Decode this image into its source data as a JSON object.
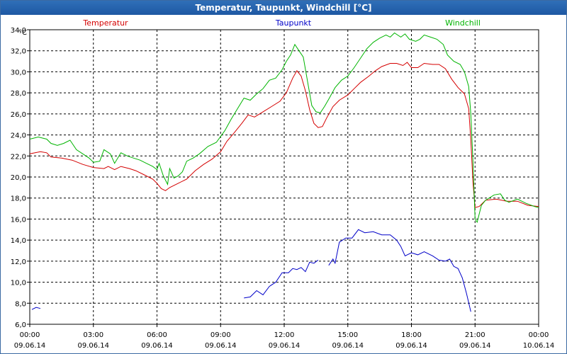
{
  "window": {
    "title": "Temperatur, Taupunkt, Windchill [°C]"
  },
  "chart_data": {
    "type": "line",
    "title": "Temperatur, Taupunkt, Windchill [°C]",
    "ylabel": "°C",
    "ylim": [
      6.0,
      34.0
    ],
    "yticks": [
      "6,0",
      "8,0",
      "10,0",
      "12,0",
      "14,0",
      "16,0",
      "18,0",
      "20,0",
      "22,0",
      "24,0",
      "26,0",
      "28,0",
      "30,0",
      "32,0",
      "34,0"
    ],
    "xticks": [
      {
        "time": "00:00",
        "date": "09.06.14"
      },
      {
        "time": "03:00",
        "date": "09.06.14"
      },
      {
        "time": "06:00",
        "date": "09.06.14"
      },
      {
        "time": "09:00",
        "date": "09.06.14"
      },
      {
        "time": "12:00",
        "date": "09.06.14"
      },
      {
        "time": "15:00",
        "date": "09.06.14"
      },
      {
        "time": "18:00",
        "date": "09.06.14"
      },
      {
        "time": "21:00",
        "date": "09.06.14"
      },
      {
        "time": "00:00",
        "date": "10.06.14"
      }
    ],
    "xlim_hours": [
      0,
      24
    ],
    "grid": true,
    "series": [
      {
        "name": "Temperatur",
        "color": "#d40000",
        "legend_pos": "left",
        "points": [
          [
            0,
            22.2
          ],
          [
            0.5,
            22.4
          ],
          [
            0.8,
            22.3
          ],
          [
            1,
            21.9
          ],
          [
            1.5,
            21.8
          ],
          [
            2,
            21.6
          ],
          [
            2.5,
            21.2
          ],
          [
            3,
            20.9
          ],
          [
            3.5,
            20.8
          ],
          [
            3.7,
            21.0
          ],
          [
            4,
            20.7
          ],
          [
            4.3,
            21.0
          ],
          [
            4.7,
            20.8
          ],
          [
            5,
            20.6
          ],
          [
            5.4,
            20.2
          ],
          [
            5.8,
            19.8
          ],
          [
            6,
            19.4
          ],
          [
            6.2,
            18.9
          ],
          [
            6.4,
            18.7
          ],
          [
            6.6,
            19.0
          ],
          [
            7,
            19.4
          ],
          [
            7.4,
            19.8
          ],
          [
            7.8,
            20.6
          ],
          [
            8.2,
            21.2
          ],
          [
            8.6,
            21.7
          ],
          [
            9,
            22.4
          ],
          [
            9.3,
            23.4
          ],
          [
            9.6,
            24.1
          ],
          [
            10,
            25.1
          ],
          [
            10.3,
            25.9
          ],
          [
            10.6,
            25.7
          ],
          [
            11,
            26.2
          ],
          [
            11.4,
            26.7
          ],
          [
            11.8,
            27.2
          ],
          [
            12.1,
            28.0
          ],
          [
            12.4,
            29.4
          ],
          [
            12.6,
            30.1
          ],
          [
            12.8,
            29.6
          ],
          [
            13,
            28.2
          ],
          [
            13.2,
            26.4
          ],
          [
            13.4,
            25.1
          ],
          [
            13.6,
            24.7
          ],
          [
            13.8,
            24.8
          ],
          [
            14,
            25.6
          ],
          [
            14.3,
            26.7
          ],
          [
            14.6,
            27.3
          ],
          [
            15,
            27.8
          ],
          [
            15.3,
            28.4
          ],
          [
            15.6,
            29.0
          ],
          [
            16,
            29.6
          ],
          [
            16.3,
            30.1
          ],
          [
            16.6,
            30.5
          ],
          [
            17,
            30.8
          ],
          [
            17.3,
            30.8
          ],
          [
            17.6,
            30.6
          ],
          [
            17.8,
            30.9
          ],
          [
            18,
            30.4
          ],
          [
            18.3,
            30.4
          ],
          [
            18.6,
            30.8
          ],
          [
            19,
            30.7
          ],
          [
            19.3,
            30.7
          ],
          [
            19.6,
            30.3
          ],
          [
            19.9,
            29.3
          ],
          [
            20.2,
            28.5
          ],
          [
            20.5,
            27.9
          ],
          [
            20.7,
            26.5
          ],
          [
            20.8,
            23.5
          ],
          [
            20.9,
            19.5
          ],
          [
            21.0,
            17.1
          ],
          [
            21.2,
            17.2
          ],
          [
            21.5,
            17.8
          ],
          [
            22,
            17.9
          ],
          [
            22.5,
            17.7
          ],
          [
            23,
            17.7
          ],
          [
            23.5,
            17.3
          ],
          [
            24,
            17.2
          ]
        ]
      },
      {
        "name": "Taupunkt",
        "color": "#0000c8",
        "legend_pos": "center",
        "segments": [
          [
            [
              0.1,
              7.4
            ],
            [
              0.3,
              7.6
            ],
            [
              0.5,
              7.5
            ]
          ],
          [
            [
              10.1,
              8.5
            ],
            [
              10.4,
              8.6
            ],
            [
              10.7,
              9.2
            ],
            [
              11,
              8.8
            ],
            [
              11.3,
              9.6
            ],
            [
              11.6,
              10.0
            ],
            [
              11.9,
              10.9
            ],
            [
              12.2,
              10.9
            ],
            [
              12.4,
              11.3
            ],
            [
              12.6,
              11.2
            ],
            [
              12.8,
              11.4
            ],
            [
              13,
              11.0
            ],
            [
              13.2,
              11.9
            ],
            [
              13.4,
              11.8
            ],
            [
              13.6,
              12.1
            ]
          ],
          [
            [
              14.1,
              11.6
            ],
            [
              14.3,
              12.2
            ],
            [
              14.4,
              11.8
            ],
            [
              14.6,
              13.8
            ],
            [
              14.9,
              14.2
            ],
            [
              15.2,
              14.2
            ],
            [
              15.5,
              15.0
            ],
            [
              15.8,
              14.7
            ],
            [
              16.2,
              14.8
            ],
            [
              16.6,
              14.5
            ],
            [
              17,
              14.5
            ],
            [
              17.3,
              14.0
            ],
            [
              17.5,
              13.4
            ],
            [
              17.7,
              12.5
            ],
            [
              18,
              12.8
            ],
            [
              18.3,
              12.6
            ],
            [
              18.6,
              12.9
            ],
            [
              19,
              12.5
            ],
            [
              19.3,
              12.1
            ],
            [
              19.6,
              12.0
            ],
            [
              19.8,
              12.2
            ],
            [
              20,
              11.5
            ],
            [
              20.2,
              11.3
            ],
            [
              20.4,
              10.4
            ],
            [
              20.6,
              8.9
            ],
            [
              20.8,
              7.2
            ]
          ]
        ]
      },
      {
        "name": "Windchill",
        "color": "#00b400",
        "legend_pos": "right",
        "points": [
          [
            0,
            23.6
          ],
          [
            0.4,
            23.8
          ],
          [
            0.8,
            23.6
          ],
          [
            1,
            23.2
          ],
          [
            1.3,
            23.0
          ],
          [
            1.6,
            23.2
          ],
          [
            1.9,
            23.5
          ],
          [
            2.2,
            22.6
          ],
          [
            2.5,
            22.2
          ],
          [
            2.8,
            21.8
          ],
          [
            3,
            21.4
          ],
          [
            3.3,
            21.5
          ],
          [
            3.5,
            22.6
          ],
          [
            3.8,
            22.2
          ],
          [
            4,
            21.3
          ],
          [
            4.3,
            22.3
          ],
          [
            4.6,
            22.0
          ],
          [
            4.9,
            21.8
          ],
          [
            5.2,
            21.6
          ],
          [
            5.5,
            21.3
          ],
          [
            5.8,
            21.0
          ],
          [
            6,
            20.7
          ],
          [
            6.1,
            21.3
          ],
          [
            6.3,
            20.1
          ],
          [
            6.5,
            19.3
          ],
          [
            6.6,
            20.8
          ],
          [
            6.8,
            19.9
          ],
          [
            7,
            20.1
          ],
          [
            7.2,
            20.5
          ],
          [
            7.4,
            21.5
          ],
          [
            7.7,
            21.8
          ],
          [
            8,
            22.2
          ],
          [
            8.4,
            22.9
          ],
          [
            8.8,
            23.3
          ],
          [
            9.2,
            24.4
          ],
          [
            9.5,
            25.5
          ],
          [
            9.8,
            26.5
          ],
          [
            10.1,
            27.5
          ],
          [
            10.4,
            27.3
          ],
          [
            10.7,
            27.9
          ],
          [
            11,
            28.4
          ],
          [
            11.3,
            29.2
          ],
          [
            11.6,
            29.4
          ],
          [
            11.9,
            30.2
          ],
          [
            12.1,
            31.0
          ],
          [
            12.3,
            31.6
          ],
          [
            12.5,
            32.6
          ],
          [
            12.7,
            32.0
          ],
          [
            12.9,
            31.4
          ],
          [
            13.1,
            29.1
          ],
          [
            13.3,
            26.8
          ],
          [
            13.5,
            26.2
          ],
          [
            13.7,
            26.1
          ],
          [
            13.9,
            26.7
          ],
          [
            14.1,
            27.4
          ],
          [
            14.4,
            28.5
          ],
          [
            14.7,
            29.2
          ],
          [
            15,
            29.6
          ],
          [
            15.3,
            30.4
          ],
          [
            15.6,
            31.3
          ],
          [
            15.9,
            32.2
          ],
          [
            16.2,
            32.8
          ],
          [
            16.5,
            33.2
          ],
          [
            16.8,
            33.5
          ],
          [
            17,
            33.3
          ],
          [
            17.2,
            33.7
          ],
          [
            17.5,
            33.3
          ],
          [
            17.7,
            33.6
          ],
          [
            17.9,
            33.1
          ],
          [
            18.2,
            32.9
          ],
          [
            18.4,
            33.1
          ],
          [
            18.6,
            33.5
          ],
          [
            18.9,
            33.3
          ],
          [
            19.2,
            33.1
          ],
          [
            19.5,
            32.6
          ],
          [
            19.7,
            31.6
          ],
          [
            20,
            31.0
          ],
          [
            20.3,
            30.7
          ],
          [
            20.5,
            30.0
          ],
          [
            20.7,
            28.6
          ],
          [
            20.8,
            26.0
          ],
          [
            20.9,
            21.5
          ],
          [
            21.0,
            16.0
          ],
          [
            21.1,
            15.7
          ],
          [
            21.3,
            17.3
          ],
          [
            21.5,
            17.8
          ],
          [
            21.9,
            18.3
          ],
          [
            22.2,
            18.4
          ],
          [
            22.4,
            17.8
          ],
          [
            22.6,
            17.6
          ],
          [
            23,
            17.9
          ],
          [
            23.4,
            17.5
          ],
          [
            23.8,
            17.2
          ],
          [
            24,
            17.1
          ]
        ]
      }
    ]
  }
}
